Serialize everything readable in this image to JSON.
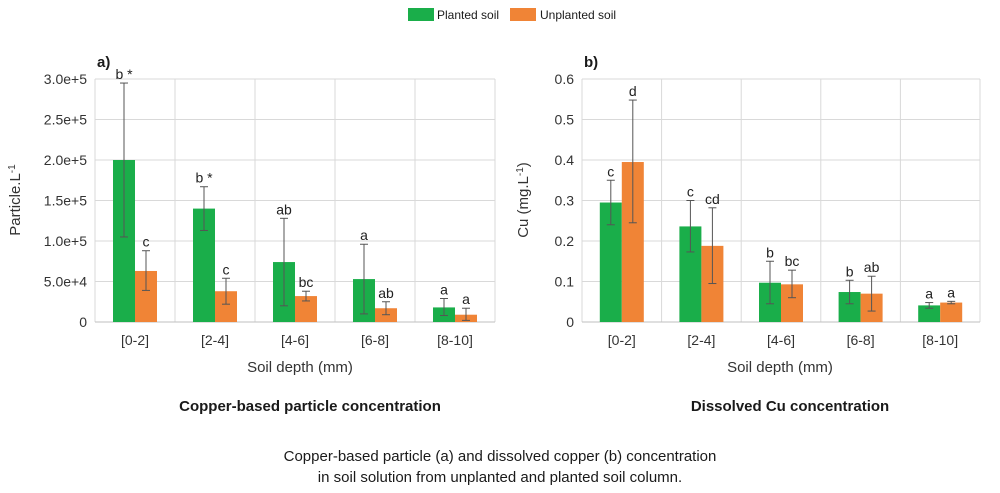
{
  "legend": {
    "items": [
      {
        "label": "Planted soil",
        "color": "#1aae4a"
      },
      {
        "label": "Unplanted soil",
        "color": "#f08436"
      }
    ]
  },
  "caption": {
    "line1": "Copper-based particle (a) and dissolved copper (b) concentration",
    "line2": "in soil solution from unplanted and planted soil column."
  },
  "chart_data": [
    {
      "type": "bar",
      "panel_label": "a)",
      "title": "Copper-based particle concentration",
      "xlabel": "Soil depth (mm)",
      "ylabel": "Particle.L",
      "ylabel_sup": "-1",
      "categories": [
        "[0-2]",
        "[2-4]",
        "[4-6]",
        "[6-8]",
        "[8-10]"
      ],
      "ylim": [
        0,
        300000
      ],
      "yticks": [
        0,
        50000,
        100000,
        150000,
        200000,
        250000,
        300000
      ],
      "ytick_labels": [
        "0",
        "5.0e+4",
        "1.0e+5",
        "1.5e+5",
        "2.0e+5",
        "2.5e+5",
        "3.0e+5"
      ],
      "grid": true,
      "series": [
        {
          "name": "Planted soil",
          "color": "#1aae4a",
          "values": [
            200000,
            140000,
            74000,
            53000,
            18000
          ],
          "error": [
            [
              105000,
              295000
            ],
            [
              113000,
              167000
            ],
            [
              20000,
              128000
            ],
            [
              10000,
              96000
            ],
            [
              8000,
              29000
            ]
          ],
          "labels": [
            "b *",
            "b *",
            "ab",
            "a",
            "a"
          ]
        },
        {
          "name": "Unplanted soil",
          "color": "#f08436",
          "values": [
            63000,
            38000,
            32000,
            17000,
            9000
          ],
          "error": [
            [
              39000,
              88000
            ],
            [
              22000,
              54000
            ],
            [
              26000,
              38000
            ],
            [
              9000,
              25000
            ],
            [
              2000,
              17000
            ]
          ],
          "labels": [
            "c",
            "c",
            "bc",
            "ab",
            "a"
          ]
        }
      ]
    },
    {
      "type": "bar",
      "panel_label": "b)",
      "title": "Dissolved Cu concentration",
      "xlabel": "Soil depth (mm)",
      "ylabel": "Cu (mg.L",
      "ylabel_sup": "-1",
      "ylabel_close": ")",
      "categories": [
        "[0-2]",
        "[2-4]",
        "[4-6]",
        "[6-8]",
        "[8-10]"
      ],
      "ylim": [
        0,
        0.6
      ],
      "yticks": [
        0,
        0.1,
        0.2,
        0.3,
        0.4,
        0.5,
        0.6
      ],
      "ytick_labels": [
        "0",
        "0.1",
        "0.2",
        "0.3",
        "0.4",
        "0.5",
        "0.6"
      ],
      "grid": true,
      "series": [
        {
          "name": "Planted soil",
          "color": "#1aae4a",
          "values": [
            0.295,
            0.236,
            0.097,
            0.074,
            0.041
          ],
          "error": [
            [
              0.24,
              0.35
            ],
            [
              0.173,
              0.3
            ],
            [
              0.045,
              0.15
            ],
            [
              0.045,
              0.103
            ],
            [
              0.034,
              0.048
            ]
          ],
          "labels": [
            "c",
            "c",
            "b",
            "b",
            "a"
          ]
        },
        {
          "name": "Unplanted soil",
          "color": "#f08436",
          "values": [
            0.395,
            0.188,
            0.093,
            0.07,
            0.048
          ],
          "error": [
            [
              0.245,
              0.548
            ],
            [
              0.095,
              0.282
            ],
            [
              0.06,
              0.128
            ],
            [
              0.027,
              0.113
            ],
            [
              0.045,
              0.051
            ]
          ],
          "labels": [
            "d",
            "cd",
            "bc",
            "ab",
            "a"
          ]
        }
      ]
    }
  ]
}
